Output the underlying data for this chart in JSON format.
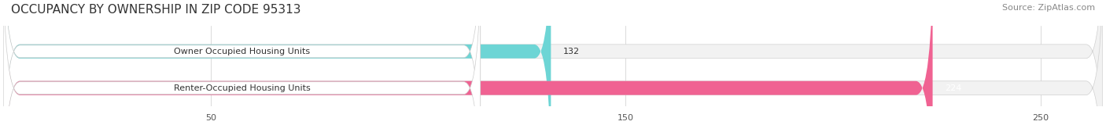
{
  "title": "OCCUPANCY BY OWNERSHIP IN ZIP CODE 95313",
  "source_text": "Source: ZipAtlas.com",
  "categories": [
    "Owner Occupied Housing Units",
    "Renter-Occupied Housing Units"
  ],
  "values": [
    132,
    224
  ],
  "bar_colors": [
    "#6dd5d5",
    "#f06292"
  ],
  "bar_bg_color": "#f0f0f0",
  "label_bg_color": "#ffffff",
  "xlim": [
    0,
    265
  ],
  "xticks": [
    50,
    150,
    250
  ],
  "title_fontsize": 11,
  "source_fontsize": 8,
  "label_fontsize": 8,
  "value_fontsize": 8,
  "background_color": "#ffffff"
}
